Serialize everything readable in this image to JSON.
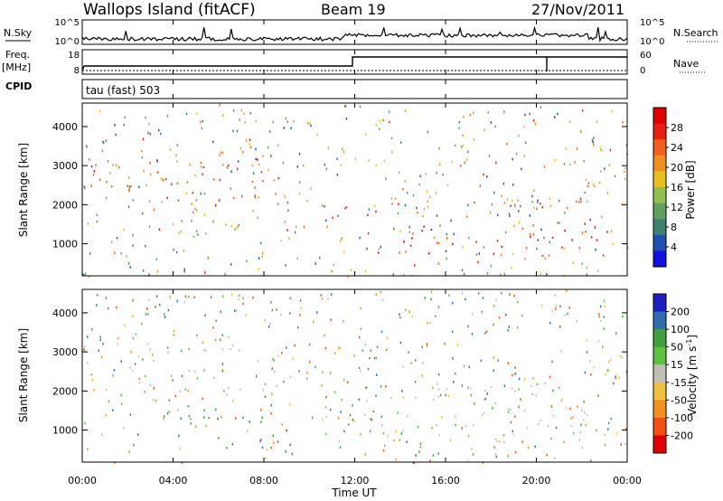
{
  "header": {
    "site": "Wallops Island (fitACF)",
    "beam": "Beam 19",
    "date": "27/Nov/2011"
  },
  "strip": {
    "nsky_label": "N.Sky",
    "nsky_ticks": [
      "10^5",
      "10^0"
    ],
    "nsearch_label": "N.Search",
    "nsearch_ticks": [
      "10^5",
      "10^0"
    ],
    "freq_label": "Freq.",
    "freq_unit": "[MHz]",
    "freq_ticks": [
      "18",
      "8"
    ],
    "nave_label": "Nave",
    "nave_ticks": [
      "60",
      "0"
    ],
    "cpid_label": "CPID",
    "cpid_value": "tau (fast) 503"
  },
  "chart_data": [
    {
      "type": "heatmap",
      "xlabel": "Time UT",
      "ylabel": "Slant Range [km]",
      "x_ticks": [
        "00:00",
        "04:00",
        "08:00",
        "12:00",
        "16:00",
        "20:00",
        "00:00"
      ],
      "xlim": [
        0,
        24
      ],
      "y_ticks": [
        "4000",
        "3000",
        "2000",
        "1000"
      ],
      "ylim": [
        180,
        4600
      ],
      "colorbar": {
        "label": "Power [dB]",
        "ticks": [
          "28",
          "24",
          "20",
          "16",
          "12",
          "8",
          "4"
        ],
        "range": [
          0,
          32
        ],
        "colors": [
          "#1010e0",
          "#2050b0",
          "#408070",
          "#60a060",
          "#90c050",
          "#e8c020",
          "#f09020",
          "#f06020",
          "#e82010",
          "#e00000"
        ]
      },
      "bands": [
        {
          "t0": 0.0,
          "t1": 1.6,
          "r0": 2300,
          "r1": 3300,
          "level": 22
        },
        {
          "t0": 2.0,
          "t1": 8.8,
          "r0": 2000,
          "r1": 3500,
          "level": 24
        },
        {
          "t0": 3.5,
          "t1": 7.5,
          "r0": 1200,
          "r1": 1800,
          "level": 12
        },
        {
          "t0": 11.6,
          "t1": 23.2,
          "r0": 700,
          "r1": 1500,
          "level": 27
        },
        {
          "t0": 12.5,
          "t1": 22.0,
          "r0": 1700,
          "r1": 2300,
          "level": 23
        },
        {
          "t0": 22.0,
          "t1": 24.0,
          "r0": 2300,
          "r1": 3600,
          "level": 20
        }
      ]
    },
    {
      "type": "heatmap",
      "xlabel": "Time UT",
      "ylabel": "Slant Range [km]",
      "x_ticks": [
        "00:00",
        "04:00",
        "08:00",
        "12:00",
        "16:00",
        "20:00",
        "00:00"
      ],
      "xlim": [
        0,
        24
      ],
      "y_ticks": [
        "4000",
        "3000",
        "2000",
        "1000"
      ],
      "ylim": [
        180,
        4600
      ],
      "colorbar": {
        "label": "Velocity [m s^-1]",
        "ticks": [
          "200",
          "100",
          "50",
          "15",
          "-15",
          "-50",
          "-100",
          "-200"
        ],
        "colors": [
          "#2020c0",
          "#2f6fb0",
          "#40a040",
          "#60c040",
          "#c0c0b8",
          "#f0c040",
          "#f09020",
          "#f05010",
          "#e00000"
        ]
      },
      "bands": [
        {
          "t0": 0.0,
          "t1": 1.6,
          "r0": 2300,
          "r1": 3300,
          "level": 15
        },
        {
          "t0": 2.0,
          "t1": 8.8,
          "r0": 2000,
          "r1": 3500,
          "level": 10
        },
        {
          "t0": 3.5,
          "t1": 7.5,
          "r0": 1200,
          "r1": 1800,
          "level": 60
        },
        {
          "t0": 11.6,
          "t1": 13.5,
          "r0": 900,
          "r1": 3200,
          "level": 60
        },
        {
          "t0": 13.0,
          "t1": 23.2,
          "r0": 700,
          "r1": 1600,
          "level": 5
        },
        {
          "t0": 12.5,
          "t1": 22.0,
          "r0": 1700,
          "r1": 2300,
          "level": 5
        },
        {
          "t0": 22.0,
          "t1": 24.0,
          "r0": 2300,
          "r1": 3600,
          "level": -20
        }
      ]
    }
  ]
}
